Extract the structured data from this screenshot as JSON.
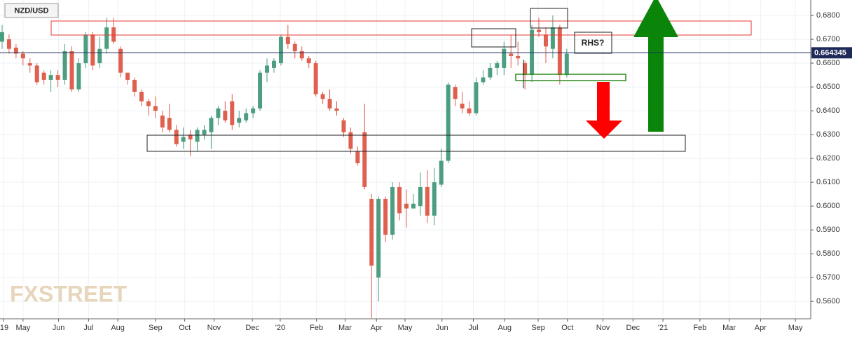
{
  "chart_data": {
    "type": "candlestick",
    "symbol": "NZD/USD",
    "annotations": [
      "RHS?"
    ],
    "watermark": "FXSTREET",
    "last_price": 0.664345,
    "up_color": "#4d9e80",
    "down_color": "#e0604f",
    "grid": true,
    "x": [
      0,
      1,
      2,
      3,
      4,
      5,
      6,
      7,
      8,
      9,
      10,
      11,
      12,
      13,
      14,
      15,
      16,
      17,
      18,
      19,
      20,
      21,
      22,
      23,
      24,
      25,
      26,
      27,
      28,
      29,
      30,
      31,
      32,
      33,
      34,
      35,
      36,
      37,
      38,
      39,
      40,
      41,
      42,
      43,
      44,
      45,
      46,
      47,
      48,
      49,
      50,
      51,
      52,
      53,
      54,
      55,
      56,
      57,
      58,
      59,
      60,
      61,
      62,
      63,
      64,
      65,
      66,
      67,
      68,
      69,
      70,
      71,
      72,
      73,
      74,
      75,
      76,
      77,
      78,
      79,
      80,
      81
    ],
    "series": [
      {
        "open": [
          0.669,
          0.67,
          0.6665,
          0.664,
          0.66,
          0.659,
          0.656,
          0.653,
          0.655,
          0.653,
          0.665,
          0.649,
          0.66,
          0.672,
          0.66,
          0.666,
          0.675,
          0.666,
          0.656,
          0.653,
          0.648,
          0.644,
          0.642,
          0.638,
          0.637,
          0.632,
          0.627,
          0.63,
          0.627,
          0.63,
          0.631,
          0.637,
          0.64,
          0.644,
          0.635,
          0.636,
          0.639,
          0.641,
          0.656,
          0.658,
          0.66,
          0.671,
          0.668,
          0.665,
          0.662,
          0.66,
          0.647,
          0.645,
          0.641,
          0.636,
          0.631,
          0.623,
          0.631,
          0.603,
          0.57,
          0.603,
          0.588,
          0.608,
          0.601,
          0.599,
          0.6,
          0.608,
          0.596,
          0.609,
          0.619,
          0.65,
          0.643,
          0.641,
          0.639,
          0.652,
          0.654,
          0.658,
          0.658,
          0.664,
          0.663,
          0.66,
          0.655,
          0.674,
          0.672,
          0.666,
          0.675,
          0.655
        ],
        "high": [
          0.676,
          0.672,
          0.668,
          0.665,
          0.662,
          0.66,
          0.657,
          0.657,
          0.657,
          0.668,
          0.667,
          0.662,
          0.673,
          0.673,
          0.671,
          0.679,
          0.679,
          0.667,
          0.656,
          0.654,
          0.649,
          0.645,
          0.646,
          0.64,
          0.643,
          0.634,
          0.633,
          0.632,
          0.633,
          0.634,
          0.638,
          0.642,
          0.644,
          0.647,
          0.64,
          0.641,
          0.642,
          0.657,
          0.662,
          0.662,
          0.672,
          0.676,
          0.669,
          0.667,
          0.663,
          0.661,
          0.648,
          0.649,
          0.644,
          0.637,
          0.633,
          0.625,
          0.643,
          0.605,
          0.604,
          0.604,
          0.61,
          0.61,
          0.607,
          0.605,
          0.614,
          0.615,
          0.616,
          0.624,
          0.652,
          0.651,
          0.648,
          0.644,
          0.654,
          0.657,
          0.66,
          0.661,
          0.669,
          0.672,
          0.669,
          0.661,
          0.676,
          0.679,
          0.675,
          0.68,
          0.676,
          0.666
        ],
        "low": [
          0.666,
          0.664,
          0.662,
          0.659,
          0.656,
          0.651,
          0.651,
          0.648,
          0.65,
          0.651,
          0.648,
          0.648,
          0.658,
          0.657,
          0.658,
          0.664,
          0.668,
          0.654,
          0.651,
          0.646,
          0.642,
          0.638,
          0.637,
          0.631,
          0.631,
          0.625,
          0.624,
          0.621,
          0.623,
          0.628,
          0.624,
          0.634,
          0.635,
          0.632,
          0.633,
          0.635,
          0.637,
          0.64,
          0.652,
          0.656,
          0.659,
          0.666,
          0.662,
          0.661,
          0.658,
          0.646,
          0.643,
          0.64,
          0.638,
          0.629,
          0.622,
          0.617,
          0.607,
          0.553,
          0.56,
          0.585,
          0.586,
          0.594,
          0.591,
          0.599,
          0.596,
          0.593,
          0.592,
          0.608,
          0.618,
          0.642,
          0.639,
          0.638,
          0.638,
          0.651,
          0.653,
          0.655,
          0.655,
          0.658,
          0.659,
          0.649,
          0.652,
          0.671,
          0.66,
          0.662,
          0.651,
          0.654
        ],
        "close": [
          0.673,
          0.666,
          0.664,
          0.662,
          0.659,
          0.652,
          0.653,
          0.655,
          0.653,
          0.665,
          0.649,
          0.66,
          0.672,
          0.659,
          0.666,
          0.675,
          0.669,
          0.656,
          0.653,
          0.648,
          0.644,
          0.642,
          0.64,
          0.633,
          0.632,
          0.626,
          0.629,
          0.628,
          0.632,
          0.632,
          0.637,
          0.641,
          0.636,
          0.634,
          0.637,
          0.639,
          0.641,
          0.656,
          0.659,
          0.661,
          0.671,
          0.668,
          0.665,
          0.662,
          0.66,
          0.647,
          0.645,
          0.641,
          0.64,
          0.631,
          0.624,
          0.618,
          0.608,
          0.575,
          0.603,
          0.588,
          0.608,
          0.597,
          0.599,
          0.601,
          0.608,
          0.596,
          0.61,
          0.619,
          0.651,
          0.645,
          0.641,
          0.639,
          0.652,
          0.654,
          0.658,
          0.66,
          0.666,
          0.663,
          0.662,
          0.655,
          0.674,
          0.673,
          0.667,
          0.675,
          0.655,
          0.664
        ]
      }
    ],
    "xlim": [
      -0.3,
      116.0
    ],
    "ylim": [
      0.5527,
      0.6865
    ],
    "yticks": [
      {
        "value": 0.68,
        "label": "0.6800"
      },
      {
        "value": 0.67,
        "label": "0.6700"
      },
      {
        "value": 0.66,
        "label": "0.6600"
      },
      {
        "value": 0.65,
        "label": "0.6500"
      },
      {
        "value": 0.64,
        "label": "0.6400"
      },
      {
        "value": 0.63,
        "label": "0.6300"
      },
      {
        "value": 0.62,
        "label": "0.6200"
      },
      {
        "value": 0.61,
        "label": "0.6100"
      },
      {
        "value": 0.6,
        "label": "0.6000"
      },
      {
        "value": 0.59,
        "label": "0.5900"
      },
      {
        "value": 0.58,
        "label": "0.5800"
      },
      {
        "value": 0.57,
        "label": "0.5700"
      },
      {
        "value": 0.56,
        "label": "0.5600"
      }
    ],
    "xticks": [
      {
        "value": 0.2,
        "label": "'19"
      },
      {
        "value": 3.0,
        "label": "May"
      },
      {
        "value": 8.1,
        "label": "Jun"
      },
      {
        "value": 12.4,
        "label": "Jul"
      },
      {
        "value": 16.6,
        "label": "Aug"
      },
      {
        "value": 22.0,
        "label": "Sep"
      },
      {
        "value": 26.2,
        "label": "Oct"
      },
      {
        "value": 30.4,
        "label": "Nov"
      },
      {
        "value": 35.9,
        "label": "Dec"
      },
      {
        "value": 39.9,
        "label": "'20"
      },
      {
        "value": 45.1,
        "label": "Feb"
      },
      {
        "value": 49.2,
        "label": "Mar"
      },
      {
        "value": 53.7,
        "label": "Apr"
      },
      {
        "value": 57.8,
        "label": "May"
      },
      {
        "value": 63.1,
        "label": "Jun"
      },
      {
        "value": 67.6,
        "label": "Jul"
      },
      {
        "value": 72.1,
        "label": "Aug"
      },
      {
        "value": 76.9,
        "label": "Sep"
      },
      {
        "value": 81.1,
        "label": "Oct"
      },
      {
        "value": 86.2,
        "label": "Nov"
      },
      {
        "value": 90.5,
        "label": "Dec"
      },
      {
        "value": 94.8,
        "label": "'21"
      },
      {
        "value": 100.1,
        "label": "Feb"
      },
      {
        "value": 104.3,
        "label": "Mar"
      },
      {
        "value": 108.8,
        "label": "Apr"
      },
      {
        "value": 113.8,
        "label": "May"
      }
    ]
  }
}
